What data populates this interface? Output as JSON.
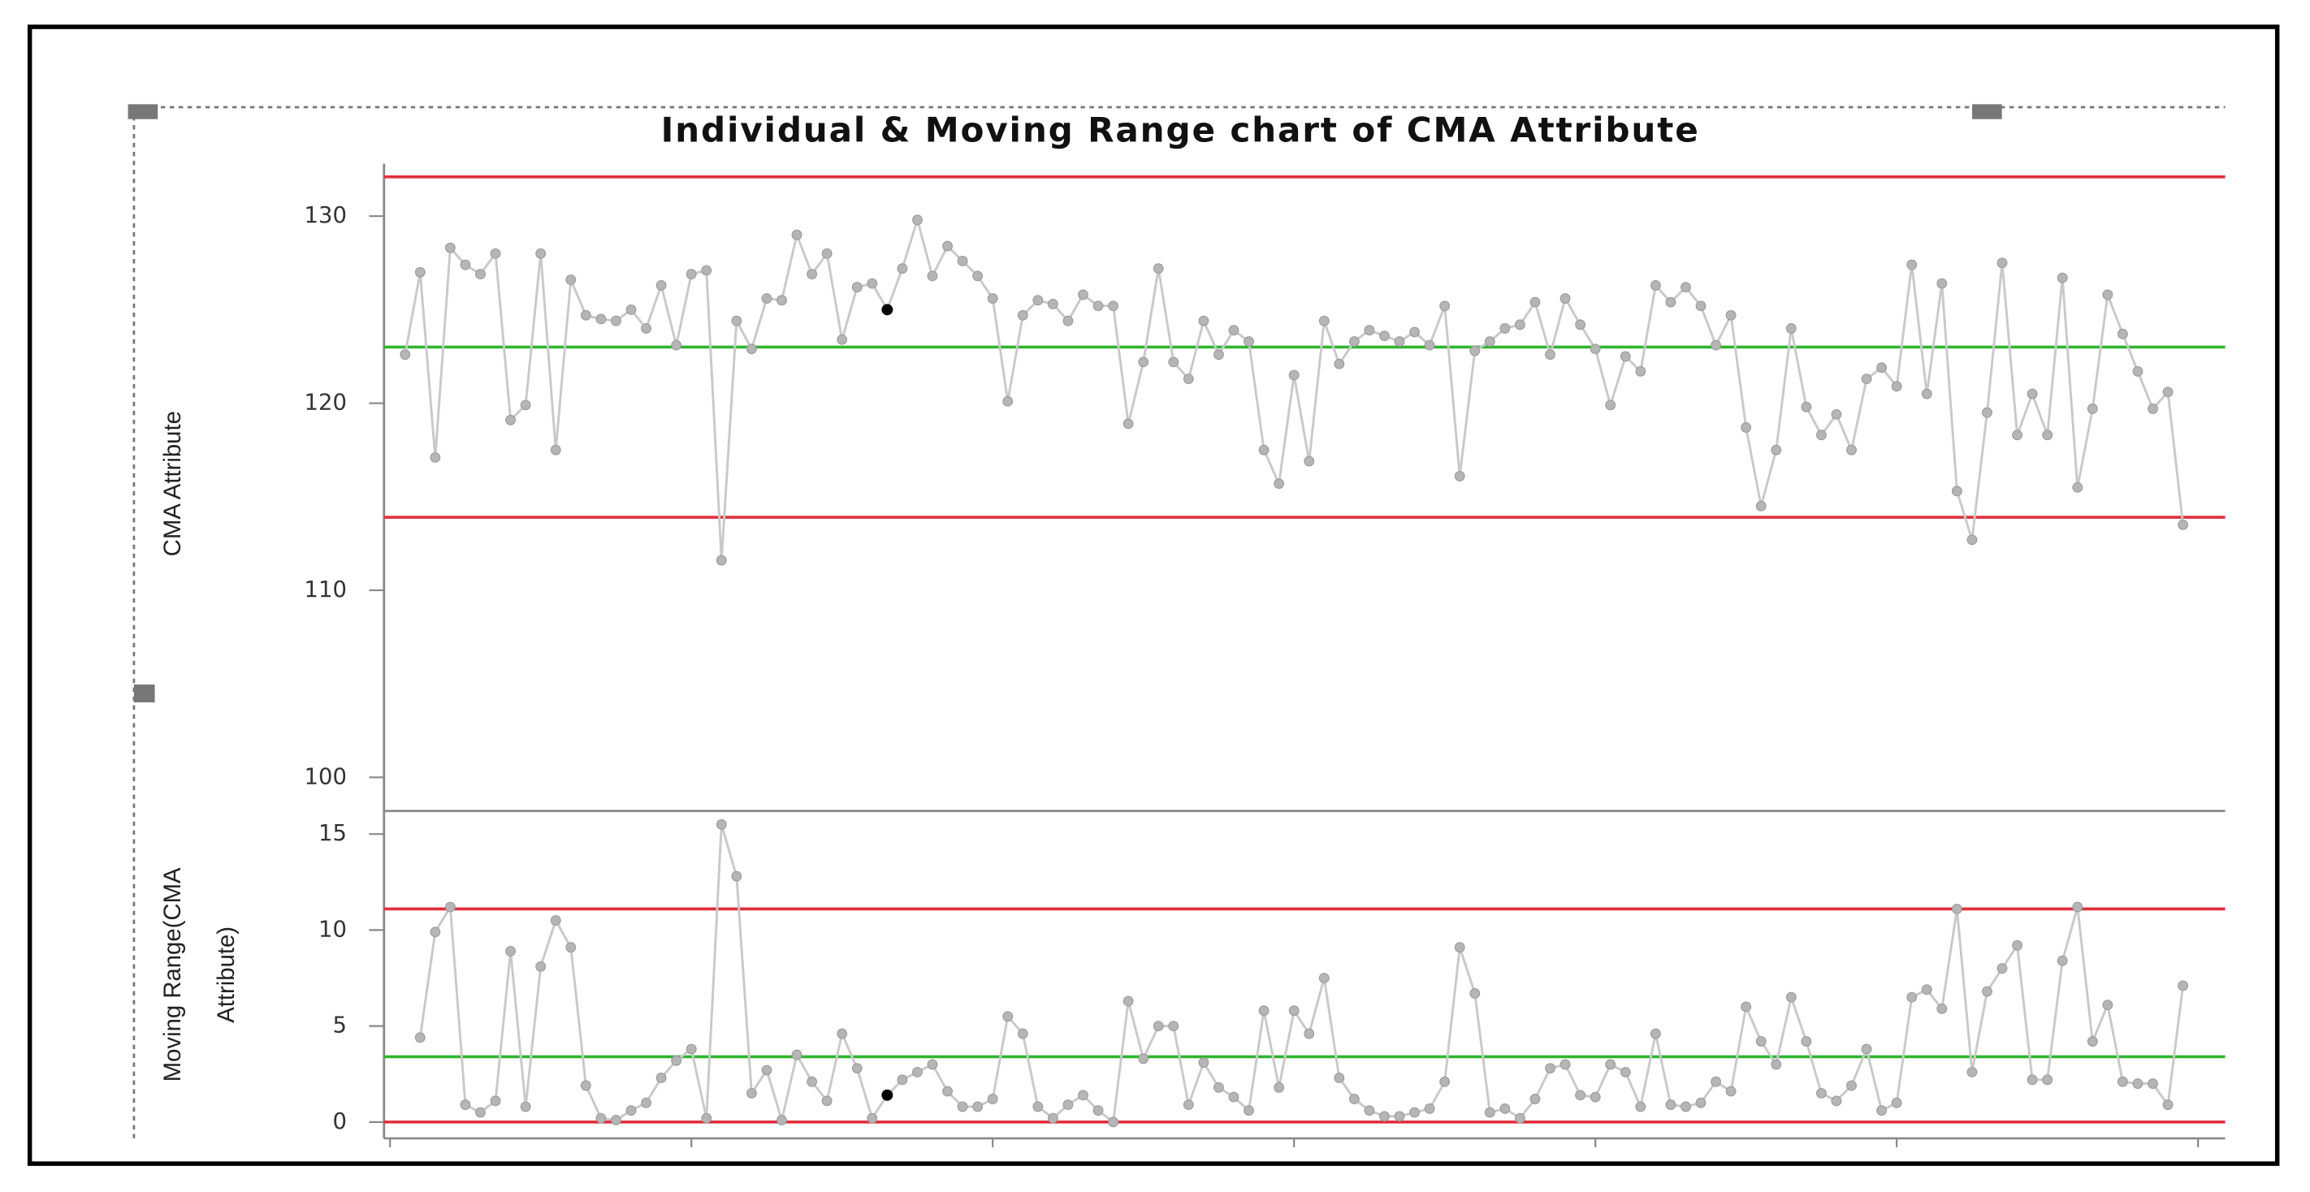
{
  "chart_data": [
    {
      "type": "line",
      "title": "Individual & Moving Range chart of CMA Attribute",
      "ylabel": [
        "CMA Attribute"
      ],
      "x": [
        1,
        2,
        3,
        4,
        5,
        6,
        7,
        8,
        9,
        10,
        11,
        12,
        13,
        14,
        15,
        16,
        17,
        18,
        19,
        20,
        21,
        22,
        23,
        24,
        25,
        26,
        27,
        28,
        29,
        30,
        31,
        32,
        33,
        34,
        35,
        36,
        37,
        38,
        39,
        40,
        41,
        42,
        43,
        44,
        45,
        46,
        47,
        48,
        49,
        50,
        51,
        52,
        53,
        54,
        55,
        56,
        57,
        58,
        59,
        60,
        61,
        62,
        63,
        64,
        65,
        66,
        67,
        68,
        69,
        70,
        71,
        72,
        73,
        74,
        75,
        76,
        77,
        78,
        79,
        80,
        81,
        82,
        83,
        84,
        85,
        86,
        87,
        88,
        89,
        90,
        91,
        92,
        93,
        94,
        95,
        96,
        97,
        98,
        99,
        100,
        101,
        102,
        103,
        104,
        105,
        106,
        107,
        108,
        109,
        110,
        111,
        112,
        113,
        114,
        115,
        116,
        117,
        118,
        119
      ],
      "series": [
        {
          "color": "#c9c9c9",
          "marker_color": "#b5b5b5",
          "values": [
            122.6,
            127.0,
            117.1,
            128.3,
            127.4,
            126.9,
            128.0,
            119.1,
            119.9,
            128.0,
            117.5,
            126.6,
            124.7,
            124.5,
            124.4,
            125.0,
            124.0,
            126.3,
            123.1,
            126.9,
            127.1,
            111.6,
            124.4,
            122.9,
            125.6,
            125.5,
            129.0,
            126.9,
            128.0,
            123.4,
            126.2,
            126.4,
            125.0,
            127.2,
            129.8,
            126.8,
            128.4,
            127.6,
            126.8,
            125.6,
            120.1,
            124.7,
            125.5,
            125.3,
            124.4,
            125.8,
            125.2,
            125.2,
            118.9,
            122.2,
            127.2,
            122.2,
            121.3,
            124.4,
            122.6,
            123.9,
            123.3,
            117.5,
            115.7,
            121.5,
            116.9,
            124.4,
            122.1,
            123.3,
            123.9,
            123.6,
            123.3,
            123.8,
            123.1,
            125.2,
            116.1,
            122.8,
            123.3,
            124.0,
            124.2,
            125.4,
            122.6,
            125.6,
            124.2,
            122.9,
            119.9,
            122.5,
            121.7,
            126.3,
            125.4,
            126.2,
            125.2,
            123.1,
            124.7,
            118.7,
            114.5,
            117.5,
            124.0,
            119.8,
            118.3,
            119.4,
            117.5,
            121.3,
            121.9,
            120.9,
            127.4,
            120.5,
            126.4,
            115.3,
            112.7,
            119.5,
            127.5,
            118.3,
            120.5,
            118.3,
            126.7,
            115.5,
            119.7,
            125.8,
            123.7,
            121.7,
            119.7,
            120.6,
            113.5
          ]
        }
      ],
      "xlim": [
        -0.4,
        121.8
      ],
      "ylim": [
        98.2,
        132.8
      ],
      "yticks": [
        100,
        110,
        120,
        130
      ],
      "hlines": [
        {
          "value": 132.1,
          "color": "#e0303c"
        },
        {
          "value": 123.0,
          "color": "#2fb52f"
        },
        {
          "value": 113.9,
          "color": "#e0303c"
        }
      ],
      "highlighted_x": 33,
      "highlight_color": "#000000"
    },
    {
      "type": "line",
      "ylabel": [
        "Moving Range(CMA",
        "Attribute)"
      ],
      "x": [
        1,
        2,
        3,
        4,
        5,
        6,
        7,
        8,
        9,
        10,
        11,
        12,
        13,
        14,
        15,
        16,
        17,
        18,
        19,
        20,
        21,
        22,
        23,
        24,
        25,
        26,
        27,
        28,
        29,
        30,
        31,
        32,
        33,
        34,
        35,
        36,
        37,
        38,
        39,
        40,
        41,
        42,
        43,
        44,
        45,
        46,
        47,
        48,
        49,
        50,
        51,
        52,
        53,
        54,
        55,
        56,
        57,
        58,
        59,
        60,
        61,
        62,
        63,
        64,
        65,
        66,
        67,
        68,
        69,
        70,
        71,
        72,
        73,
        74,
        75,
        76,
        77,
        78,
        79,
        80,
        81,
        82,
        83,
        84,
        85,
        86,
        87,
        88,
        89,
        90,
        91,
        92,
        93,
        94,
        95,
        96,
        97,
        98,
        99,
        100,
        101,
        102,
        103,
        104,
        105,
        106,
        107,
        108,
        109,
        110,
        111,
        112,
        113,
        114,
        115,
        116,
        117,
        118,
        119
      ],
      "series": [
        {
          "color": "#c9c9c9",
          "marker_color": "#b5b5b5",
          "values": [
            null,
            4.4,
            9.9,
            11.2,
            0.9,
            0.5,
            1.1,
            8.9,
            0.8,
            8.1,
            10.5,
            9.1,
            1.9,
            0.2,
            0.1,
            0.6,
            1.0,
            2.3,
            3.2,
            3.8,
            0.2,
            15.5,
            12.8,
            1.5,
            2.7,
            0.1,
            3.5,
            2.1,
            1.1,
            4.6,
            2.8,
            0.2,
            1.4,
            2.2,
            2.6,
            3.0,
            1.6,
            0.8,
            0.8,
            1.2,
            5.5,
            4.6,
            0.8,
            0.2,
            0.9,
            1.4,
            0.6,
            0.0,
            6.3,
            3.3,
            5.0,
            5.0,
            0.9,
            3.1,
            1.8,
            1.3,
            0.6,
            5.8,
            1.8,
            5.8,
            4.6,
            7.5,
            2.3,
            1.2,
            0.6,
            0.3,
            0.3,
            0.5,
            0.7,
            2.1,
            9.1,
            6.7,
            0.5,
            0.7,
            0.2,
            1.2,
            2.8,
            3.0,
            1.4,
            1.3,
            3.0,
            2.6,
            0.8,
            4.6,
            0.9,
            0.8,
            1.0,
            2.1,
            1.6,
            6.0,
            4.2,
            3.0,
            6.5,
            4.2,
            1.5,
            1.1,
            1.9,
            3.8,
            0.6,
            1.0,
            6.5,
            6.9,
            5.9,
            11.1,
            2.6,
            6.8,
            8.0,
            9.2,
            2.2,
            2.2,
            8.4,
            11.2,
            4.2,
            6.1,
            2.1,
            2.0,
            2.0,
            0.9,
            7.1
          ]
        }
      ],
      "xlim": [
        -0.4,
        121.8
      ],
      "xticks": [
        0,
        20,
        40,
        60,
        80,
        100,
        120
      ],
      "ylim": [
        -0.85,
        16.2
      ],
      "yticks": [
        0,
        5,
        10,
        15
      ],
      "hlines": [
        {
          "value": 11.1,
          "color": "#e0303c"
        },
        {
          "value": 3.4,
          "color": "#2fb52f"
        },
        {
          "value": 0,
          "color": "#e0303c"
        }
      ],
      "highlighted_x": 33,
      "highlight_color": "#000000"
    }
  ]
}
